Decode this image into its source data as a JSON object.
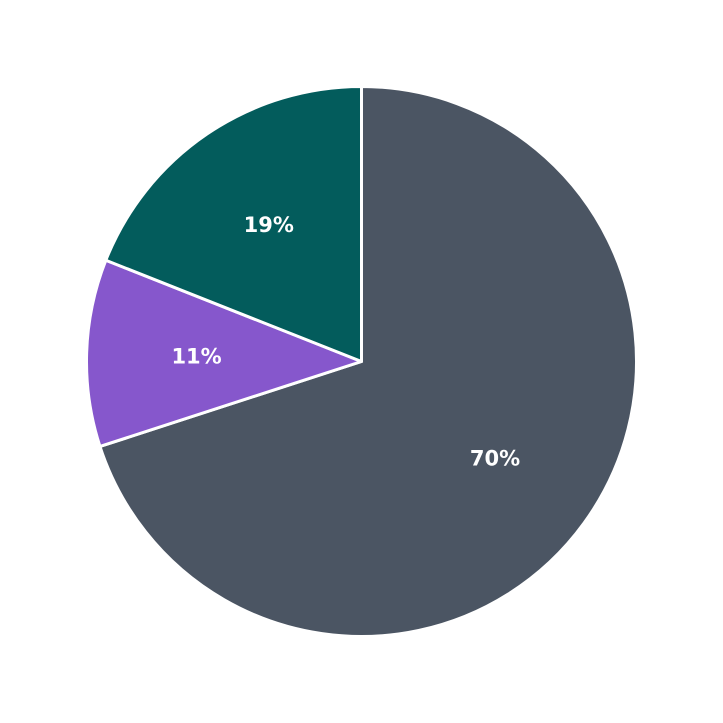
{
  "chart_data": {
    "type": "pie",
    "start_angle": 90,
    "direction": "clockwise",
    "slices": [
      {
        "value": 70,
        "label": "70%",
        "color": "#4b5563"
      },
      {
        "value": 11,
        "label": "11%",
        "color": "#8657cc"
      },
      {
        "value": 19,
        "label": "19%",
        "color": "#035c5c"
      }
    ],
    "edge_color": "#ffffff"
  }
}
